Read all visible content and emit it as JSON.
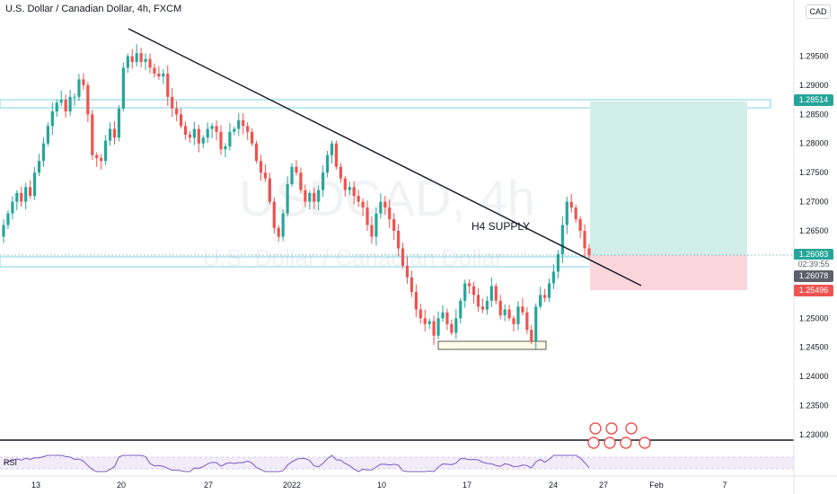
{
  "header": {
    "title": "U.S. Dollar / Canadian Dollar, 4h, FXCM",
    "currency": "CAD"
  },
  "watermark": {
    "symbol": "USDCAD, 4h",
    "description": "U.S. Dollar / Canadian Dollar"
  },
  "annotations": {
    "supply_label": "H4 SUPPLY"
  },
  "price_axis": {
    "ticks": [
      "1.29500",
      "1.29000",
      "1.28500",
      "1.28000",
      "1.27500",
      "1.27000",
      "1.26500",
      "1.26000",
      "1.25500",
      "1.25000",
      "1.24500",
      "1.24000",
      "1.23500",
      "1.23000"
    ]
  },
  "price_tags": {
    "target": "1.28514",
    "current": "1.26083",
    "countdown": "02:39:55",
    "entry": "1.26078",
    "stop": "1.25496"
  },
  "time_axis": {
    "ticks": [
      "13",
      "20",
      "27",
      "2022",
      "10",
      "17",
      "24",
      "27",
      "Feb",
      "7"
    ]
  },
  "indicator": {
    "name": "RSI"
  },
  "colors": {
    "bull_candle": "#26a69a",
    "bear_candle": "#ef5350",
    "zone_border": "#7fd3e6",
    "target_fill": "#d1eee8",
    "stop_fill": "#fad6da",
    "target_tag": "#26a69a",
    "current_tag": "#26a69a",
    "entry_tag": "#5d606b",
    "stop_tag": "#ef5350",
    "rsi_line": "#7e57c2"
  },
  "chart_data": {
    "type": "candlestick",
    "symbol": "USDCAD",
    "timeframe": "4h",
    "y_range": [
      1.228,
      1.298
    ],
    "closes": [
      1.266,
      1.268,
      1.27,
      1.2715,
      1.27,
      1.2725,
      1.271,
      1.275,
      1.277,
      1.28,
      1.283,
      1.2855,
      1.287,
      1.2875,
      1.2855,
      1.288,
      1.288,
      1.291,
      1.29,
      1.285,
      1.278,
      1.2775,
      1.277,
      1.2805,
      1.2825,
      1.281,
      1.286,
      1.293,
      1.295,
      1.294,
      1.2955,
      1.294,
      1.2945,
      1.293,
      1.292,
      1.2915,
      1.292,
      1.288,
      1.286,
      1.285,
      1.283,
      1.2815,
      1.281,
      1.2825,
      1.28,
      1.281,
      1.2825,
      1.283,
      1.282,
      1.279,
      1.2795,
      1.282,
      1.2825,
      1.284,
      1.283,
      1.282,
      1.28,
      1.277,
      1.275,
      1.274,
      1.27,
      1.2655,
      1.264,
      1.268,
      1.273,
      1.276,
      1.275,
      1.272,
      1.27,
      1.2715,
      1.27,
      1.272,
      1.275,
      1.278,
      1.28,
      1.276,
      1.274,
      1.272,
      1.2725,
      1.271,
      1.27,
      1.269,
      1.266,
      1.264,
      1.268,
      1.27,
      1.269,
      1.267,
      1.265,
      1.262,
      1.259,
      1.257,
      1.2545,
      1.2515,
      1.25,
      1.249,
      1.2495,
      1.247,
      1.25,
      1.251,
      1.249,
      1.2475,
      1.25,
      1.253,
      1.256,
      1.2555,
      1.254,
      1.252,
      1.2515,
      1.253,
      1.2555,
      1.253,
      1.2505,
      1.2515,
      1.25,
      1.249,
      1.252,
      1.251,
      1.248,
      1.246,
      1.252,
      1.254,
      1.2535,
      1.256,
      1.258,
      1.261,
      1.266,
      1.27,
      1.269,
      1.267,
      1.265,
      1.262,
      1.2608
    ]
  },
  "trade_setup": {
    "target": 1.28514,
    "entry": 1.26078,
    "stop": 1.25496,
    "supply_zone": [
      1.259,
      1.2605
    ],
    "upper_zone": [
      1.2845,
      1.2858
    ],
    "demand_zone": [
      1.2458,
      1.2468
    ],
    "trendline_start": [
      "Dec 20",
      1.297
    ],
    "trendline_end": [
      "Jan 31",
      1.2555
    ]
  }
}
